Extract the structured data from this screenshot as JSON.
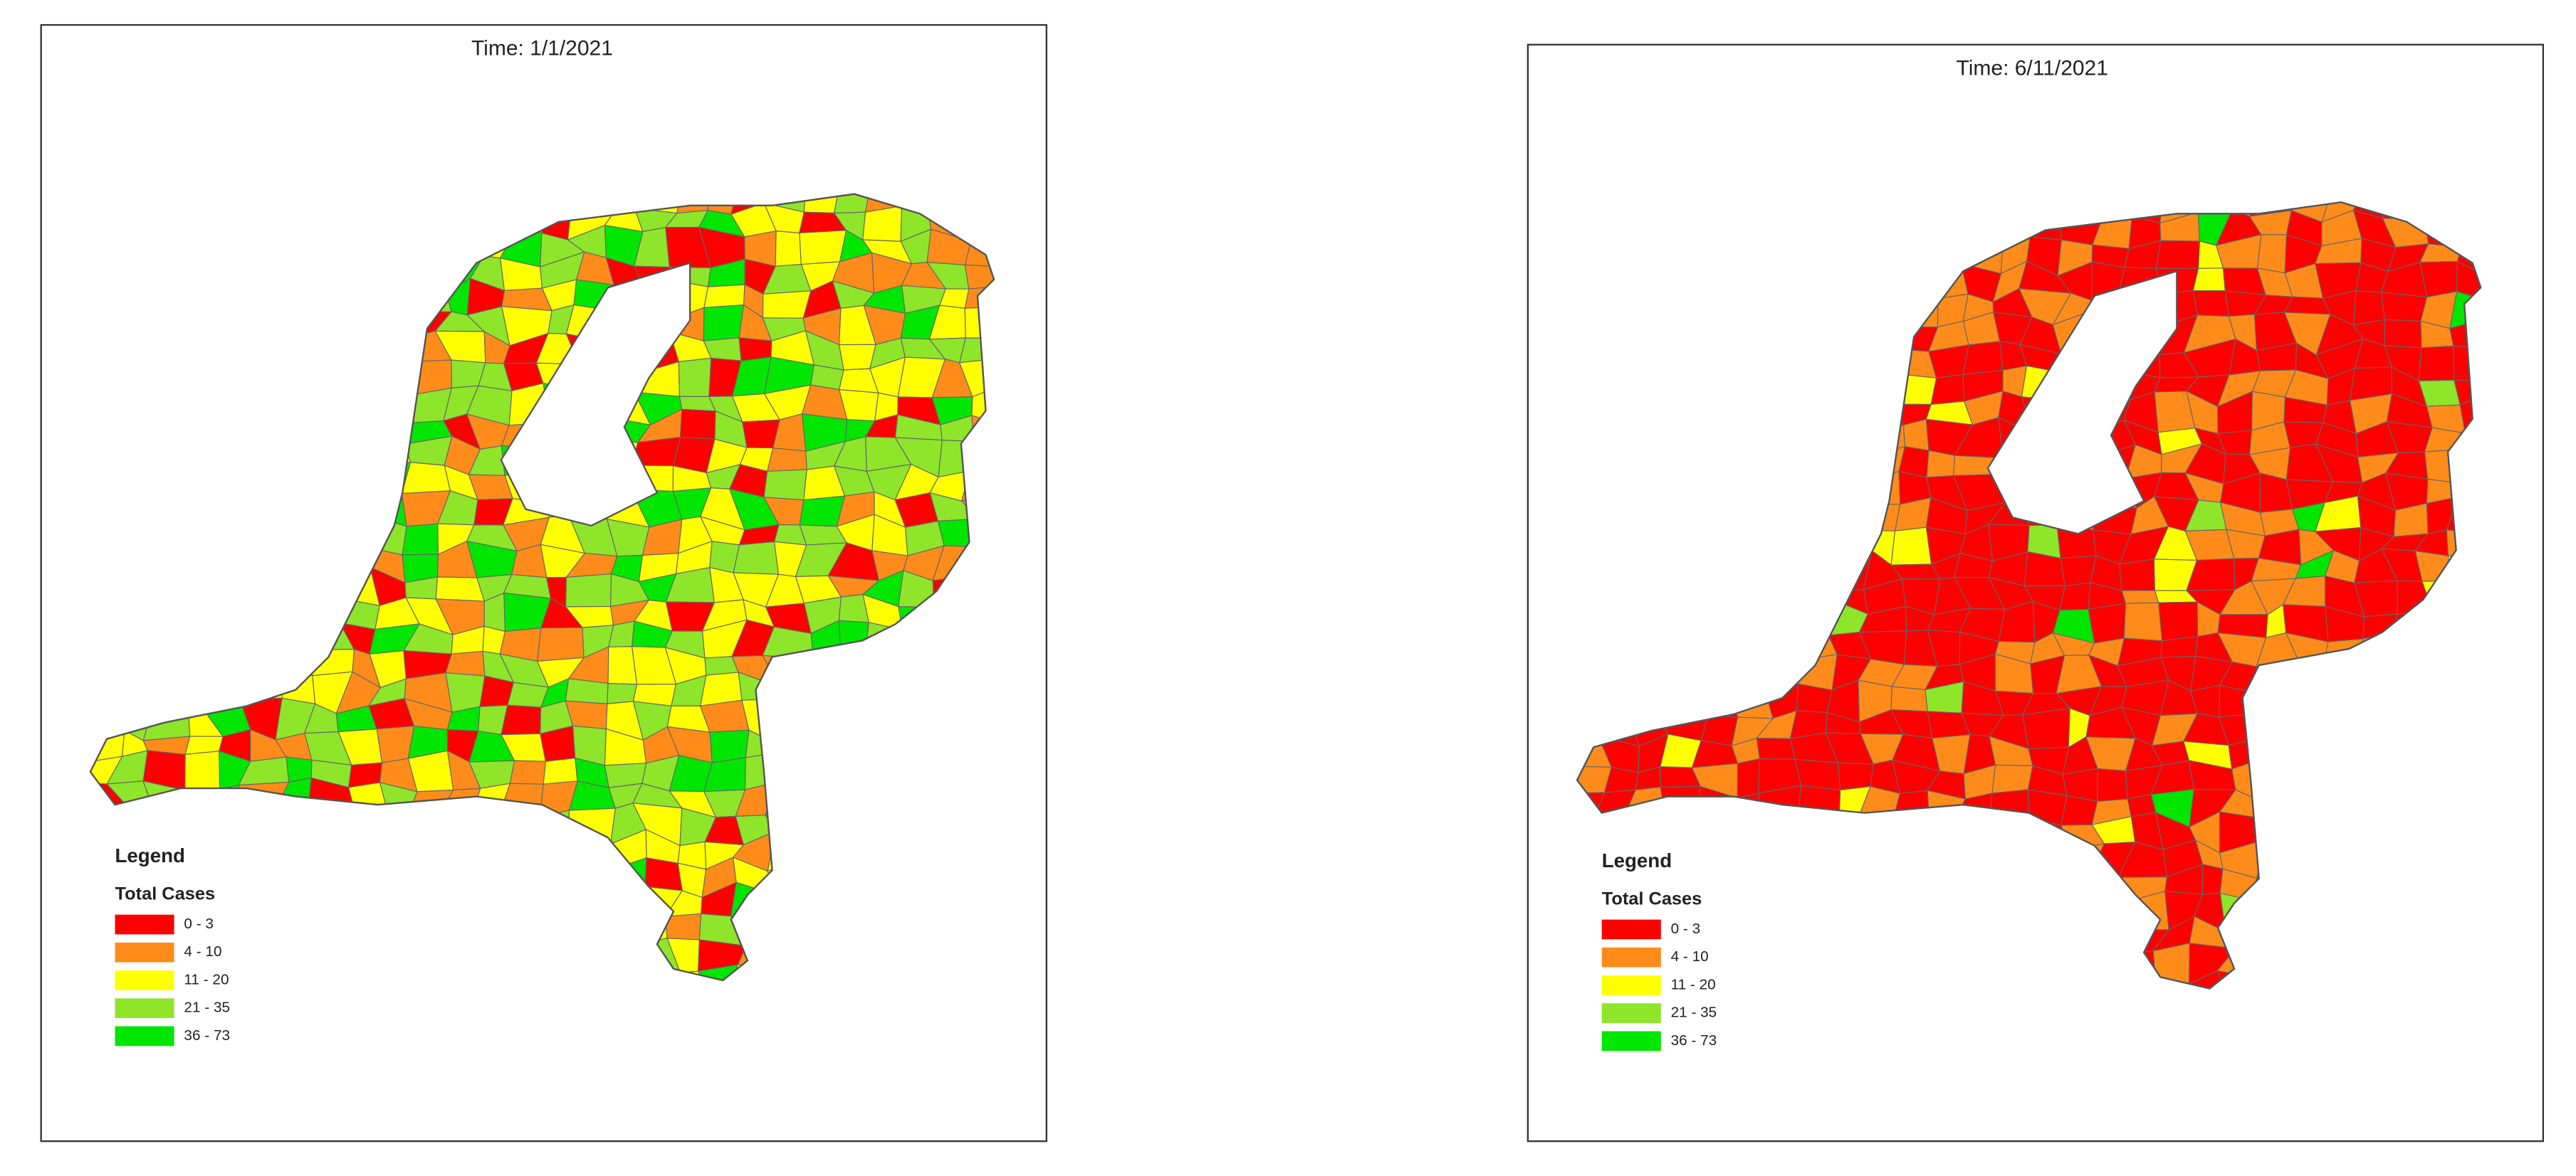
{
  "panels": [
    {
      "title": "Time: 1/1/2021",
      "legend": {
        "title": "Legend",
        "subtitle": "Total Cases",
        "items": [
          {
            "label": "0 - 3",
            "color": "#ff0000"
          },
          {
            "label": "4 - 10",
            "color": "#ff8c1a"
          },
          {
            "label": "11 - 20",
            "color": "#ffff00"
          },
          {
            "label": "21 - 35",
            "color": "#8ee52a"
          },
          {
            "label": "36 - 73",
            "color": "#00e600"
          }
        ]
      }
    },
    {
      "title": "Time: 6/11/2021",
      "legend": {
        "title": "Legend",
        "subtitle": "Total Cases",
        "items": [
          {
            "label": "0 - 3",
            "color": "#ff0000"
          },
          {
            "label": "4 - 10",
            "color": "#ff8c1a"
          },
          {
            "label": "11 - 20",
            "color": "#ffff00"
          },
          {
            "label": "21 - 35",
            "color": "#8ee52a"
          },
          {
            "label": "36 - 73",
            "color": "#00e600"
          }
        ]
      }
    }
  ]
}
